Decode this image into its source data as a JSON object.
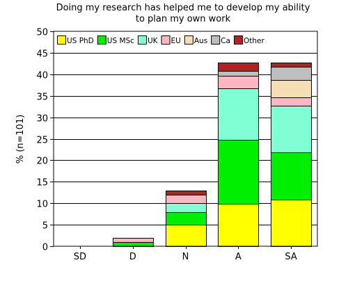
{
  "chart_data": {
    "type": "bar",
    "stacked": true,
    "title_lines": [
      "Doing my research has helped me to develop my ability",
      "to plan my own work"
    ],
    "xlabel": "",
    "ylabel": "% (n=101)",
    "categories": [
      "SD",
      "D",
      "N",
      "A",
      "SA"
    ],
    "ylim": [
      0,
      50
    ],
    "yticks": [
      0,
      5,
      10,
      15,
      20,
      25,
      30,
      35,
      40,
      45,
      50
    ],
    "grid": true,
    "legend_position": "top-left",
    "series": [
      {
        "name": "US PhD",
        "color": "#ffff00",
        "values": [
          0,
          0,
          5.0,
          9.9,
          10.9
        ]
      },
      {
        "name": "US MSc",
        "color": "#00ee00",
        "values": [
          0,
          1.0,
          3.0,
          14.9,
          10.9
        ]
      },
      {
        "name": "UK",
        "color": "#80ffd4",
        "values": [
          0,
          0,
          2.0,
          11.9,
          10.9
        ]
      },
      {
        "name": "EU",
        "color": "#ffb6c1",
        "values": [
          0,
          1.0,
          2.0,
          3.0,
          2.0
        ]
      },
      {
        "name": "Aus",
        "color": "#f5deb3",
        "values": [
          0,
          0,
          0,
          0,
          4.0
        ]
      },
      {
        "name": "Ca",
        "color": "#bebebe",
        "values": [
          0,
          0,
          0,
          1.0,
          3.0
        ]
      },
      {
        "name": "Other",
        "color": "#b22222",
        "values": [
          0,
          0,
          1.0,
          2.0,
          1.0
        ]
      }
    ]
  }
}
